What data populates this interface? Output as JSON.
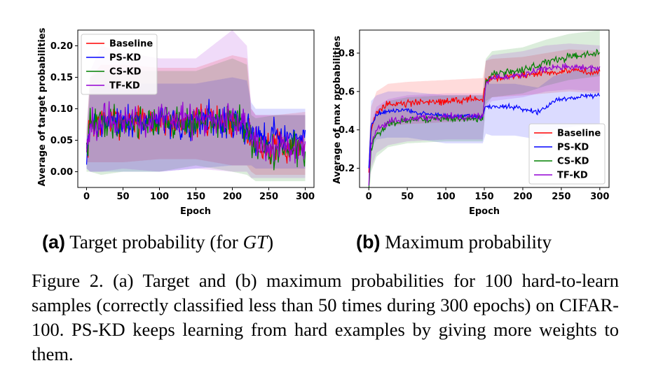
{
  "chart_data": [
    {
      "type": "line",
      "ylabel": "Average of target probabilities",
      "xlabel": "Epoch",
      "xlim": [
        -12,
        312
      ],
      "ylim": [
        -0.025,
        0.225
      ],
      "xticks": [
        0,
        50,
        100,
        150,
        200,
        250,
        300
      ],
      "xtick_labels": [
        "0",
        "50",
        "100",
        "150",
        "200",
        "250",
        "300"
      ],
      "yticks": [
        0.0,
        0.05,
        0.1,
        0.15,
        0.2
      ],
      "ytick_labels": [
        "0.00",
        "0.05",
        "0.10",
        "0.15",
        "0.20"
      ],
      "legend": "top-left",
      "series": [
        {
          "name": "Baseline",
          "color": "#ff0000",
          "x": [
            0,
            5,
            20,
            50,
            100,
            150,
            200,
            220,
            226,
            232,
            260,
            300
          ],
          "values": [
            0.03,
            0.075,
            0.08,
            0.082,
            0.08,
            0.078,
            0.08,
            0.072,
            0.045,
            0.04,
            0.038,
            0.044
          ],
          "noise": 0.018,
          "band_lo": [
            0.015,
            0.015,
            0.015,
            0.015,
            0.02,
            0.02,
            0.01,
            0.01,
            0.0,
            -0.005,
            -0.005,
            -0.005
          ],
          "band_hi": [
            0.06,
            0.15,
            0.17,
            0.17,
            0.165,
            0.165,
            0.185,
            0.18,
            0.1,
            0.09,
            0.09,
            0.095
          ]
        },
        {
          "name": "PS-KD",
          "color": "#0000ff",
          "x": [
            0,
            5,
            20,
            50,
            100,
            150,
            200,
            220,
            226,
            232,
            260,
            300
          ],
          "values": [
            0.025,
            0.07,
            0.08,
            0.08,
            0.078,
            0.078,
            0.08,
            0.07,
            0.06,
            0.055,
            0.055,
            0.055
          ],
          "noise": 0.018,
          "band_lo": [
            0.005,
            0.0,
            0.0,
            0.0,
            0.0,
            0.005,
            0.01,
            0.01,
            0.01,
            0.005,
            0.005,
            0.005
          ],
          "band_hi": [
            0.05,
            0.13,
            0.14,
            0.14,
            0.14,
            0.14,
            0.15,
            0.145,
            0.11,
            0.1,
            0.1,
            0.1
          ]
        },
        {
          "name": "CS-KD",
          "color": "#008000",
          "x": [
            0,
            5,
            20,
            50,
            100,
            150,
            200,
            220,
            226,
            232,
            260,
            300
          ],
          "values": [
            0.03,
            0.075,
            0.08,
            0.08,
            0.079,
            0.078,
            0.08,
            0.072,
            0.04,
            0.035,
            0.035,
            0.035
          ],
          "noise": 0.018,
          "band_lo": [
            0.0,
            0.0,
            -0.005,
            0.0,
            0.0,
            0.01,
            0.0,
            -0.005,
            -0.01,
            -0.015,
            -0.015,
            -0.015
          ],
          "band_hi": [
            0.06,
            0.15,
            0.16,
            0.16,
            0.16,
            0.16,
            0.18,
            0.17,
            0.09,
            0.085,
            0.09,
            0.09
          ]
        },
        {
          "name": "TF-KD",
          "color": "#9400d3",
          "x": [
            0,
            5,
            20,
            50,
            100,
            150,
            200,
            220,
            226,
            232,
            260,
            300
          ],
          "values": [
            0.035,
            0.078,
            0.082,
            0.082,
            0.08,
            0.08,
            0.083,
            0.075,
            0.042,
            0.038,
            0.038,
            0.04
          ],
          "noise": 0.018,
          "band_lo": [
            0.005,
            0.0,
            0.0,
            0.005,
            0.0,
            0.005,
            0.0,
            0.0,
            -0.01,
            -0.01,
            -0.01,
            -0.01
          ],
          "band_hi": [
            0.07,
            0.16,
            0.2,
            0.19,
            0.18,
            0.18,
            0.225,
            0.2,
            0.1,
            0.09,
            0.09,
            0.09
          ]
        }
      ]
    },
    {
      "type": "line",
      "ylabel": "Average of max probabilities",
      "xlabel": "Epoch",
      "xlim": [
        -12,
        312
      ],
      "ylim": [
        0.1,
        0.92
      ],
      "xticks": [
        0,
        50,
        100,
        150,
        200,
        250,
        300
      ],
      "xtick_labels": [
        "0",
        "50",
        "100",
        "150",
        "200",
        "250",
        "300"
      ],
      "yticks": [
        0.2,
        0.4,
        0.6,
        0.8
      ],
      "ytick_labels": [
        "0.2",
        "0.4",
        "0.6",
        "0.8"
      ],
      "legend": "bottom-right",
      "series": [
        {
          "name": "Baseline",
          "color": "#ff0000",
          "x": [
            0,
            3,
            10,
            25,
            50,
            100,
            148,
            152,
            160,
            200,
            230,
            260,
            300
          ],
          "values": [
            0.18,
            0.4,
            0.5,
            0.53,
            0.54,
            0.55,
            0.56,
            0.65,
            0.67,
            0.68,
            0.7,
            0.71,
            0.7
          ],
          "noise": 0.013,
          "band_lo": [
            0.12,
            0.3,
            0.38,
            0.42,
            0.43,
            0.44,
            0.45,
            0.55,
            0.57,
            0.58,
            0.59,
            0.6,
            0.59
          ],
          "band_hi": [
            0.3,
            0.52,
            0.6,
            0.64,
            0.65,
            0.66,
            0.67,
            0.76,
            0.77,
            0.78,
            0.8,
            0.82,
            0.81
          ]
        },
        {
          "name": "PS-KD",
          "color": "#0000ff",
          "x": [
            0,
            3,
            10,
            25,
            50,
            100,
            148,
            152,
            160,
            190,
            220,
            240,
            270,
            300
          ],
          "values": [
            0.2,
            0.42,
            0.48,
            0.5,
            0.5,
            0.47,
            0.47,
            0.52,
            0.52,
            0.52,
            0.49,
            0.55,
            0.575,
            0.58
          ],
          "noise": 0.009,
          "band_lo": [
            0.15,
            0.3,
            0.35,
            0.36,
            0.36,
            0.33,
            0.33,
            0.38,
            0.37,
            0.37,
            0.35,
            0.4,
            0.42,
            0.43
          ],
          "band_hi": [
            0.3,
            0.55,
            0.58,
            0.6,
            0.6,
            0.58,
            0.58,
            0.64,
            0.64,
            0.64,
            0.62,
            0.68,
            0.71,
            0.72
          ]
        },
        {
          "name": "CS-KD",
          "color": "#008000",
          "x": [
            0,
            3,
            10,
            25,
            50,
            100,
            148,
            152,
            160,
            200,
            230,
            260,
            300
          ],
          "values": [
            0.1,
            0.3,
            0.38,
            0.43,
            0.45,
            0.46,
            0.46,
            0.65,
            0.69,
            0.71,
            0.75,
            0.78,
            0.8
          ],
          "noise": 0.013,
          "band_lo": [
            0.05,
            0.18,
            0.26,
            0.31,
            0.33,
            0.34,
            0.34,
            0.53,
            0.57,
            0.59,
            0.63,
            0.66,
            0.68
          ],
          "band_hi": [
            0.2,
            0.42,
            0.5,
            0.55,
            0.57,
            0.58,
            0.58,
            0.77,
            0.81,
            0.83,
            0.87,
            0.9,
            0.92
          ]
        },
        {
          "name": "TF-KD",
          "color": "#9400d3",
          "x": [
            0,
            3,
            10,
            25,
            50,
            100,
            148,
            152,
            160,
            200,
            230,
            260,
            300
          ],
          "values": [
            0.12,
            0.32,
            0.4,
            0.44,
            0.46,
            0.47,
            0.47,
            0.64,
            0.67,
            0.69,
            0.72,
            0.73,
            0.72
          ],
          "noise": 0.013,
          "band_lo": [
            0.08,
            0.2,
            0.28,
            0.32,
            0.34,
            0.35,
            0.35,
            0.52,
            0.55,
            0.57,
            0.6,
            0.61,
            0.6
          ],
          "band_hi": [
            0.2,
            0.44,
            0.52,
            0.56,
            0.58,
            0.59,
            0.59,
            0.76,
            0.79,
            0.81,
            0.84,
            0.85,
            0.84
          ]
        }
      ]
    }
  ],
  "subcaption_a": {
    "label": "(a)",
    "text": "Target probability (for",
    "gt": "GT",
    "close": ")"
  },
  "subcaption_b": {
    "label": "(b)",
    "text": "Maximum probability"
  },
  "caption": "Figure 2. (a) Target and (b) maximum probabilities for 100 hard-to-learn samples (correctly classified less than 50 times during 300 epochs) on CIFAR-100. PS-KD keeps learning from hard examples by giving more weights to them."
}
